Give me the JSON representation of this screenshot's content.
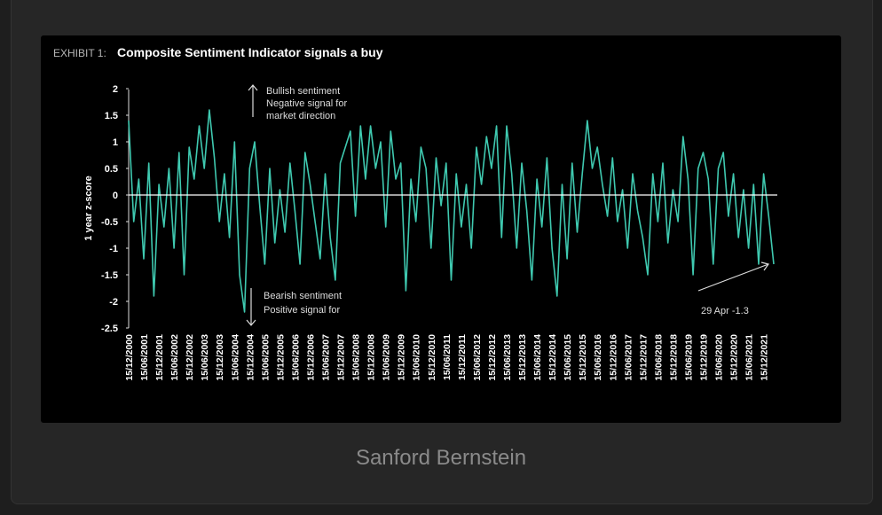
{
  "caption": "Sanford Bernstein",
  "chart_data": {
    "type": "line",
    "title_prefix": "EXHIBIT 1:",
    "title": "Composite Sentiment Indicator signals a buy",
    "ylabel": "1 year z-score",
    "xlabel": "",
    "ylim": [
      -2.5,
      2
    ],
    "yticks": [
      "2",
      "1.5",
      "1",
      "0.5",
      "0",
      "-0.5",
      "-1",
      "-1.5",
      "-2",
      "-2.5"
    ],
    "xticks": [
      "15/12/2000",
      "15/06/2001",
      "15/12/2001",
      "15/06/2002",
      "15/12/2002",
      "15/06/2003",
      "15/12/2003",
      "15/06/2004",
      "15/12/2004",
      "15/06/2005",
      "15/12/2005",
      "15/06/2006",
      "15/12/2006",
      "15/06/2007",
      "15/12/2007",
      "15/06/2008",
      "15/12/2008",
      "15/06/2009",
      "15/12/2009",
      "15/06/2010",
      "15/12/2010",
      "15/06/2011",
      "15/12/2011",
      "15/06/2012",
      "15/12/2012",
      "15/06/2013",
      "15/12/2013",
      "15/06/2014",
      "15/12/2014",
      "15/06/2015",
      "15/12/2015",
      "15/06/2016",
      "15/12/2016",
      "15/06/2017",
      "15/12/2017",
      "15/06/2018",
      "15/12/2018",
      "15/06/2019",
      "15/12/2019",
      "15/06/2020",
      "15/12/2020",
      "15/06/2021",
      "15/12/2021"
    ],
    "grid": false,
    "line_color": "#3fc9b0",
    "series": [
      {
        "x_start": "2000-12",
        "x_step_months": 2,
        "values": [
          1.4,
          -0.5,
          0.3,
          -1.2,
          0.6,
          -1.9,
          0.2,
          -0.6,
          0.5,
          -1.0,
          0.8,
          -1.5,
          0.9,
          0.3,
          1.3,
          0.5,
          1.6,
          0.7,
          -0.5,
          0.4,
          -0.8,
          1.0,
          -1.5,
          -2.2,
          0.5,
          1.0,
          -0.2,
          -1.3,
          0.5,
          -0.9,
          0.1,
          -0.7,
          0.6,
          -0.3,
          -1.3,
          0.8,
          0.2,
          -0.5,
          -1.2,
          0.4,
          -0.8,
          -1.6,
          0.6,
          0.9,
          1.2,
          -0.4,
          1.3,
          0.3,
          1.3,
          0.5,
          1.0,
          -0.6,
          1.2,
          0.3,
          0.6,
          -1.8,
          0.3,
          -0.5,
          0.9,
          0.5,
          -1.0,
          0.7,
          -0.2,
          0.6,
          -1.6,
          0.4,
          -0.6,
          0.2,
          -1.0,
          0.9,
          0.2,
          1.1,
          0.5,
          1.3,
          -0.8,
          1.3,
          0.4,
          -1.0,
          0.6,
          -0.3,
          -1.6,
          0.3,
          -0.6,
          0.7,
          -1.0,
          -1.9,
          0.2,
          -1.2,
          0.6,
          -0.7,
          0.4,
          1.4,
          0.5,
          0.9,
          0.2,
          -0.4,
          0.7,
          -0.5,
          0.1,
          -1.0,
          0.4,
          -0.3,
          -0.8,
          -1.5,
          0.4,
          -0.5,
          0.6,
          -0.9,
          0.1,
          -0.5,
          1.1,
          0.3,
          -1.5,
          0.5,
          0.8,
          0.3,
          -1.3,
          0.5,
          0.8,
          -0.4,
          0.4,
          -0.8,
          0.1,
          -1.0,
          0.2,
          -1.3,
          0.4,
          -0.4,
          -1.3
        ]
      }
    ],
    "annotations": {
      "bullish": [
        "Bullish sentiment",
        "Negative signal for",
        "market direction"
      ],
      "bearish": [
        "Bearish sentiment",
        "Positive signal for"
      ],
      "latest": "29 Apr -1.3"
    }
  }
}
